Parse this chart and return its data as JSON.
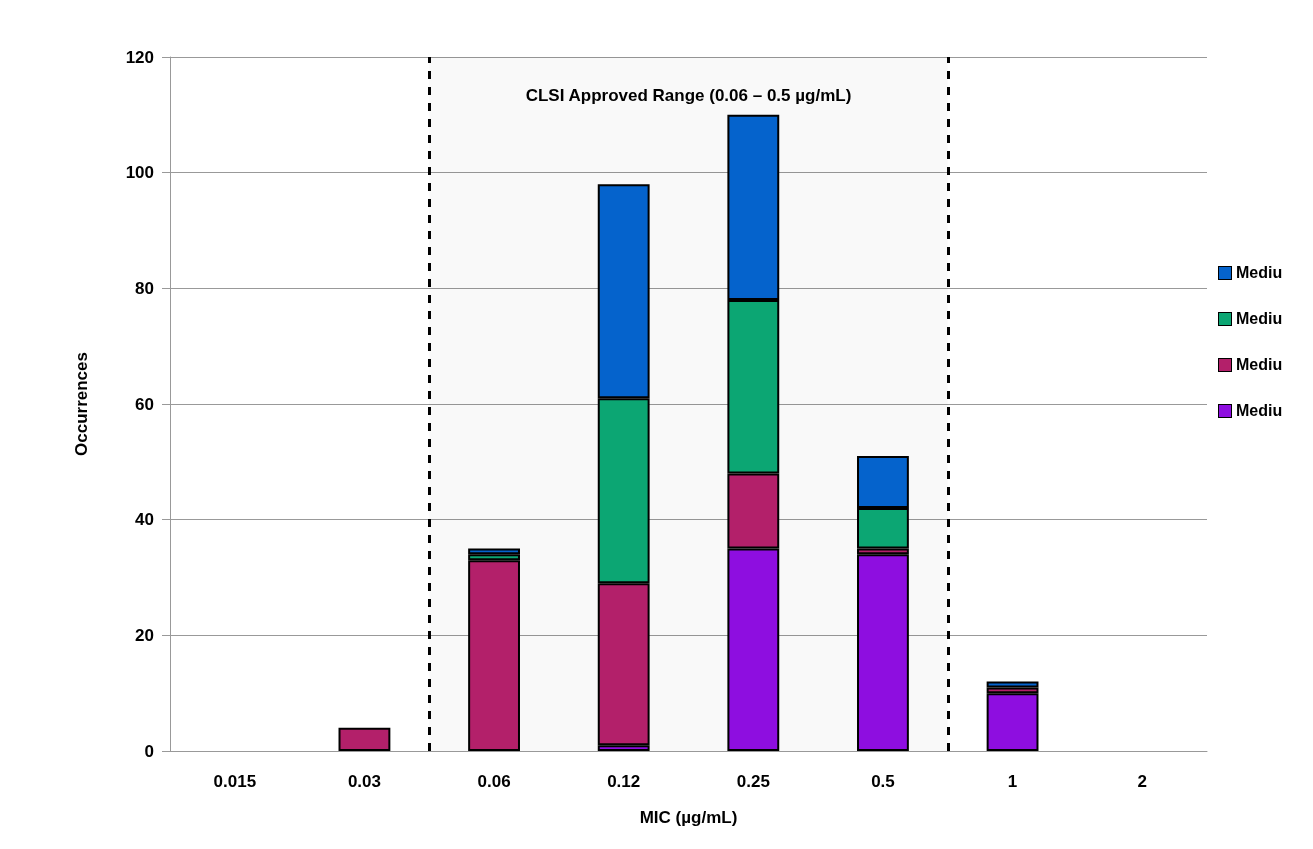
{
  "chart_data": {
    "type": "bar",
    "stacked": true,
    "xlabel": "MIC (µg/mL)",
    "ylabel": "Occurrences",
    "categories": [
      "0.015",
      "0.03",
      "0.06",
      "0.12",
      "0.25",
      "0.5",
      "1",
      "2"
    ],
    "series": [
      {
        "name": "Mediu",
        "color": "#8e0ee0",
        "values": [
          0,
          0,
          0,
          1,
          35,
          34,
          10,
          0
        ]
      },
      {
        "name": "Mediu",
        "color": "#b3206a",
        "values": [
          0,
          4,
          33,
          28,
          13,
          1,
          1,
          0
        ]
      },
      {
        "name": "Mediu",
        "color": "#0ca673",
        "values": [
          0,
          0,
          1,
          32,
          30,
          7,
          0,
          0
        ]
      },
      {
        "name": "Mediu",
        "color": "#0563cc",
        "values": [
          0,
          0,
          1,
          37,
          32,
          9,
          1,
          0
        ]
      }
    ],
    "ylim": [
      0,
      120
    ],
    "yticks": [
      0,
      20,
      40,
      60,
      80,
      100,
      120
    ],
    "grid": "y",
    "legend": "right",
    "bands": [
      {
        "axis": "x",
        "from": "0.06",
        "to": "0.5",
        "label": "CLSI Approved Range (0.06 – 0.5 µg/mL)"
      }
    ]
  }
}
